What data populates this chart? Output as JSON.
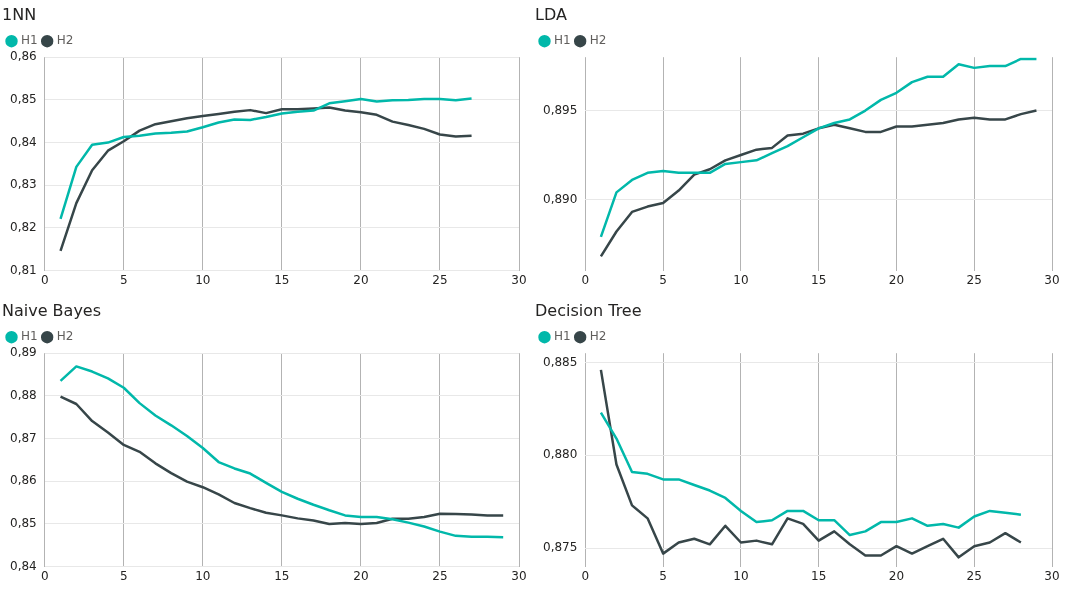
{
  "chart_data": [
    {
      "type": "line",
      "title": "1NN",
      "x": [
        1,
        2,
        3,
        4,
        5,
        6,
        7,
        8,
        9,
        10,
        11,
        12,
        13,
        14,
        15,
        16,
        17,
        18,
        19,
        20,
        21,
        22,
        23,
        24,
        25,
        26,
        27
      ],
      "series": [
        {
          "name": "H1",
          "color": "#01b8aa",
          "values": [
            0.8221,
            0.8343,
            0.8395,
            0.84,
            0.8413,
            0.8416,
            0.8421,
            0.8423,
            0.8426,
            0.8436,
            0.8447,
            0.8454,
            0.8453,
            0.846,
            0.8468,
            0.8472,
            0.8475,
            0.8492,
            0.8497,
            0.8502,
            0.8496,
            0.8499,
            0.85,
            0.8502,
            0.8502,
            0.8499,
            0.8503
          ]
        },
        {
          "name": "H2",
          "color": "#374649",
          "values": [
            0.8146,
            0.8258,
            0.8335,
            0.8381,
            0.8403,
            0.8428,
            0.8443,
            0.845,
            0.8457,
            0.8462,
            0.8467,
            0.8472,
            0.8476,
            0.8469,
            0.8478,
            0.8478,
            0.848,
            0.8482,
            0.8475,
            0.8471,
            0.8465,
            0.8449,
            0.8441,
            0.8432,
            0.8419,
            0.8414,
            0.8416
          ]
        }
      ],
      "xlim": [
        0,
        30
      ],
      "xticks": [
        0,
        5,
        10,
        15,
        20,
        25,
        30
      ],
      "ylim": [
        0.81,
        0.86
      ],
      "yticks": [
        {
          "value": 0.81,
          "label": "0,81"
        },
        {
          "value": 0.82,
          "label": "0,82"
        },
        {
          "value": 0.83,
          "label": "0,83"
        },
        {
          "value": 0.84,
          "label": "0,84"
        },
        {
          "value": 0.85,
          "label": "0,85"
        },
        {
          "value": 0.86,
          "label": "0,86"
        }
      ],
      "grid": true,
      "legend": "top left",
      "marker": "none",
      "line_style": "solid"
    },
    {
      "type": "line",
      "title": "LDA",
      "x": [
        1,
        2,
        3,
        4,
        5,
        6,
        7,
        8,
        9,
        10,
        11,
        12,
        13,
        14,
        15,
        16,
        17,
        18,
        19,
        20,
        21,
        22,
        23,
        24,
        25,
        26,
        27,
        28,
        29
      ],
      "series": [
        {
          "name": "H1",
          "color": "#01b8aa",
          "values": [
            0.8879,
            0.8904,
            0.8911,
            0.8915,
            0.8916,
            0.8915,
            0.8915,
            0.8915,
            0.892,
            0.8921,
            0.8922,
            0.8926,
            0.893,
            0.8935,
            0.894,
            0.8943,
            0.8945,
            0.895,
            0.8956,
            0.896,
            0.8966,
            0.8969,
            0.8969,
            0.8976,
            0.8974,
            0.8975,
            0.8975,
            0.8979,
            0.8979
          ]
        },
        {
          "name": "H2",
          "color": "#374649",
          "values": [
            0.8868,
            0.8882,
            0.8893,
            0.8896,
            0.8898,
            0.8905,
            0.8914,
            0.8917,
            0.8922,
            0.8925,
            0.8928,
            0.8929,
            0.8936,
            0.8937,
            0.894,
            0.8942,
            0.894,
            0.8938,
            0.8938,
            0.8941,
            0.8941,
            0.8942,
            0.8943,
            0.8945,
            0.8946,
            0.8945,
            0.8945,
            0.8948,
            0.895
          ]
        }
      ],
      "xlim": [
        0,
        30
      ],
      "xticks": [
        0,
        5,
        10,
        15,
        20,
        25,
        30
      ],
      "ylim": [
        0.886,
        0.898
      ],
      "yticks": [
        {
          "value": 0.89,
          "label": "0,890"
        },
        {
          "value": 0.895,
          "label": "0,895"
        }
      ],
      "grid": true,
      "legend": "top left",
      "marker": "none",
      "line_style": "solid"
    },
    {
      "type": "line",
      "title": "Naive Bayes",
      "x": [
        1,
        2,
        3,
        4,
        5,
        6,
        7,
        8,
        9,
        10,
        11,
        12,
        13,
        14,
        15,
        16,
        17,
        18,
        19,
        20,
        21,
        22,
        23,
        24,
        25,
        26,
        27,
        28,
        29
      ],
      "series": [
        {
          "name": "H1",
          "color": "#01b8aa",
          "values": [
            0.8835,
            0.8869,
            0.8857,
            0.8841,
            0.8819,
            0.8783,
            0.8754,
            0.8731,
            0.8706,
            0.8678,
            0.8645,
            0.863,
            0.8618,
            0.8596,
            0.8575,
            0.8559,
            0.8545,
            0.8532,
            0.852,
            0.8516,
            0.8516,
            0.8511,
            0.8503,
            0.8494,
            0.8482,
            0.8472,
            0.847,
            0.847,
            0.8469
          ]
        },
        {
          "name": "H2",
          "color": "#374649",
          "values": [
            0.8798,
            0.8781,
            0.8741,
            0.8714,
            0.8685,
            0.8669,
            0.8642,
            0.8619,
            0.8599,
            0.8586,
            0.8569,
            0.8549,
            0.8537,
            0.8526,
            0.852,
            0.8513,
            0.8508,
            0.85,
            0.8502,
            0.85,
            0.8502,
            0.8512,
            0.8512,
            0.8516,
            0.8524,
            0.8523,
            0.8522,
            0.852,
            0.852
          ]
        }
      ],
      "xlim": [
        0,
        30
      ],
      "xticks": [
        0,
        5,
        10,
        15,
        20,
        25,
        30
      ],
      "ylim": [
        0.84,
        0.89
      ],
      "yticks": [
        {
          "value": 0.84,
          "label": "0,84"
        },
        {
          "value": 0.85,
          "label": "0,85"
        },
        {
          "value": 0.86,
          "label": "0,86"
        },
        {
          "value": 0.87,
          "label": "0,87"
        },
        {
          "value": 0.88,
          "label": "0,88"
        },
        {
          "value": 0.89,
          "label": "0,89"
        }
      ],
      "grid": true,
      "legend": "top left",
      "marker": "none",
      "line_style": "solid"
    },
    {
      "type": "line",
      "title": "Decision Tree",
      "x": [
        1,
        2,
        3,
        4,
        5,
        6,
        7,
        8,
        9,
        10,
        11,
        12,
        13,
        14,
        15,
        16,
        17,
        18,
        19,
        20,
        21,
        22,
        23,
        24,
        25,
        26,
        27,
        28
      ],
      "series": [
        {
          "name": "H1",
          "color": "#01b8aa",
          "values": [
            0.8823,
            0.8809,
            0.8791,
            0.879,
            0.8787,
            0.8787,
            0.8784,
            0.8781,
            0.8777,
            0.877,
            0.8764,
            0.8765,
            0.877,
            0.877,
            0.8765,
            0.8765,
            0.8757,
            0.8759,
            0.8764,
            0.8764,
            0.8766,
            0.8762,
            0.8763,
            0.8761,
            0.8767,
            0.877,
            0.8769,
            0.8768
          ]
        },
        {
          "name": "H2",
          "color": "#374649",
          "values": [
            0.8846,
            0.8795,
            0.8773,
            0.8766,
            0.8747,
            0.8753,
            0.8755,
            0.8752,
            0.8762,
            0.8753,
            0.8754,
            0.8752,
            0.8766,
            0.8763,
            0.8754,
            0.8759,
            0.8752,
            0.8746,
            0.8746,
            0.8751,
            0.8747,
            0.8751,
            0.8755,
            0.8745,
            0.8751,
            0.8753,
            0.8758,
            0.8753
          ]
        }
      ],
      "xlim": [
        0,
        30
      ],
      "xticks": [
        0,
        5,
        10,
        15,
        20,
        25,
        30
      ],
      "ylim": [
        0.874,
        0.8855
      ],
      "yticks": [
        {
          "value": 0.875,
          "label": "0,875"
        },
        {
          "value": 0.88,
          "label": "0,880"
        },
        {
          "value": 0.885,
          "label": "0,885"
        }
      ],
      "grid": true,
      "legend": "top left",
      "marker": "none",
      "line_style": "solid"
    }
  ]
}
